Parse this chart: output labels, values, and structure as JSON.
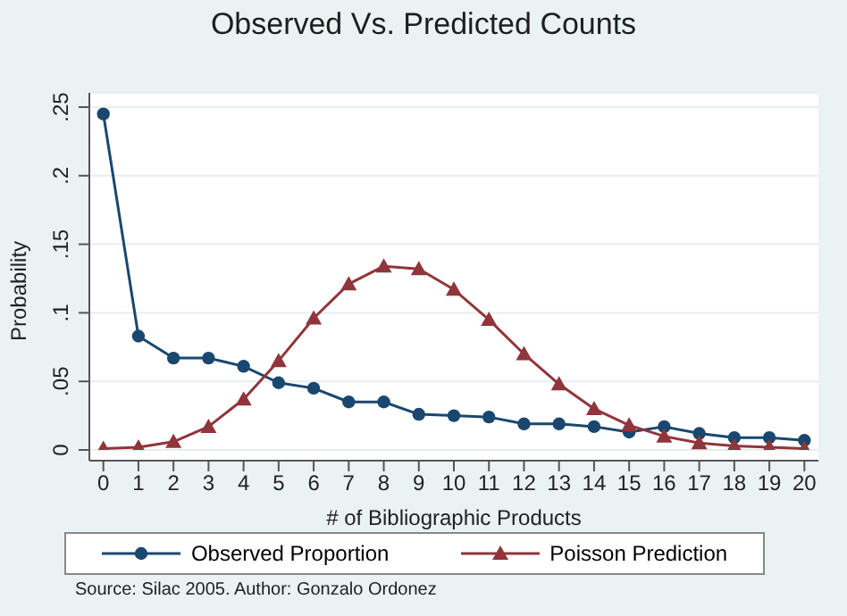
{
  "chart_data": {
    "type": "line",
    "title": "Observed Vs. Predicted Counts",
    "xlabel": "# of Bibliographic Products",
    "ylabel": "Probability",
    "x": [
      0,
      1,
      2,
      3,
      4,
      5,
      6,
      7,
      8,
      9,
      10,
      11,
      12,
      13,
      14,
      15,
      16,
      17,
      18,
      19,
      20
    ],
    "series": [
      {
        "name": "Observed Proportion",
        "color": "#1a476f",
        "marker": "circle",
        "values": [
          0.245,
          0.083,
          0.067,
          0.067,
          0.061,
          0.049,
          0.045,
          0.035,
          0.035,
          0.026,
          0.025,
          0.024,
          0.019,
          0.019,
          0.017,
          0.013,
          0.017,
          0.012,
          0.009,
          0.009,
          0.007
        ]
      },
      {
        "name": "Poisson Prediction",
        "color": "#90353b",
        "marker": "triangle",
        "values": [
          0.001,
          0.002,
          0.006,
          0.017,
          0.037,
          0.065,
          0.096,
          0.121,
          0.134,
          0.132,
          0.117,
          0.095,
          0.07,
          0.048,
          0.03,
          0.018,
          0.01,
          0.005,
          0.003,
          0.002,
          0.001
        ]
      }
    ],
    "xlim": [
      -0.4,
      20.4
    ],
    "xticks": [
      0,
      1,
      2,
      3,
      4,
      5,
      6,
      7,
      8,
      9,
      10,
      11,
      12,
      13,
      14,
      15,
      16,
      17,
      18,
      19,
      20
    ],
    "ylim": [
      0,
      0.25
    ],
    "yticks": [
      {
        "value": 0,
        "label": "0"
      },
      {
        "value": 0.05,
        "label": ".05"
      },
      {
        "value": 0.1,
        "label": ".1"
      },
      {
        "value": 0.15,
        "label": ".15"
      },
      {
        "value": 0.2,
        "label": ".2"
      },
      {
        "value": 0.25,
        "label": ".25"
      }
    ],
    "grid": "y",
    "legend": "bottom",
    "annotations": [
      "Source: Silac 2005. Author: Gonzalo Ordonez"
    ]
  }
}
